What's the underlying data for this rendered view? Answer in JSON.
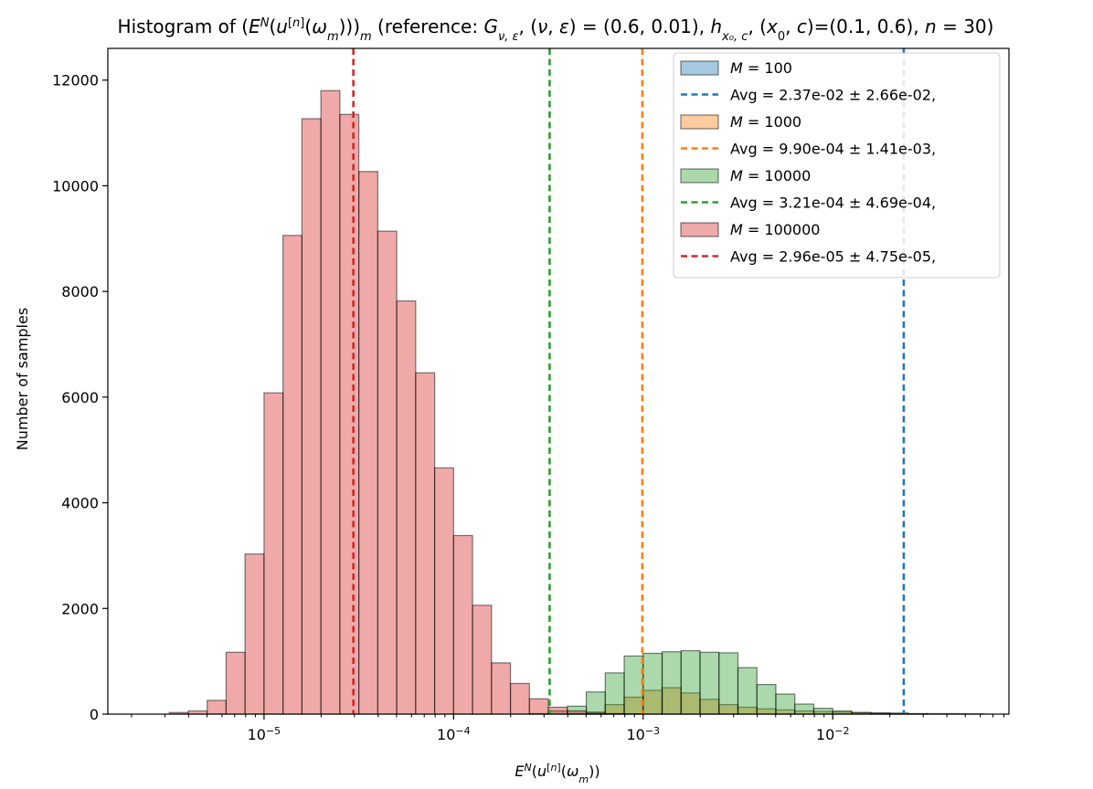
{
  "chart_data": {
    "type": "histogram",
    "title": "Histogram of (E^N(u^[n](ω_m)))_m (reference: G_{ν,ε}, (ν, ε) = (0.6, 0.01), h_{x0,c}, (x0, c)=(0.1, 0.6), n = 30)",
    "xlabel": "E^N(u^[n](ω_m))",
    "ylabel": "Number of samples",
    "xscale": "log",
    "xlim": [
      1.5e-06,
      0.085
    ],
    "ylim": [
      0,
      12600
    ],
    "yticks": [
      0,
      2000,
      4000,
      6000,
      8000,
      10000,
      12000
    ],
    "xticks": [
      {
        "value": 1e-05,
        "base": "10",
        "exp": "−5"
      },
      {
        "value": 0.0001,
        "base": "10",
        "exp": "−4"
      },
      {
        "value": 0.001,
        "base": "10",
        "exp": "−3"
      },
      {
        "value": 0.01,
        "base": "10",
        "exp": "−2"
      }
    ],
    "bin_edges_log10": [
      -5.7,
      -5.6,
      -5.5,
      -5.4,
      -5.3,
      -5.2,
      -5.1,
      -5.0,
      -4.9,
      -4.8,
      -4.7,
      -4.6,
      -4.5,
      -4.4,
      -4.3,
      -4.2,
      -4.1,
      -4.0,
      -3.9,
      -3.8,
      -3.7,
      -3.6,
      -3.5,
      -3.4,
      -3.3,
      -3.2,
      -3.1,
      -3.0,
      -2.9,
      -2.8,
      -2.7,
      -2.6,
      -2.5,
      -2.4,
      -2.3,
      -2.2,
      -2.1,
      -2.0,
      -1.9,
      -1.8,
      -1.7,
      -1.6,
      -1.5,
      -1.4,
      -1.3,
      -1.2
    ],
    "series": [
      {
        "name": "M = 100",
        "M": "100",
        "color": "#1f77b4",
        "avg_label": "Avg = 2.37e-02 ± 2.66e-02,",
        "avg": 0.0237,
        "values": [
          0,
          0,
          0,
          0,
          0,
          0,
          0,
          0,
          0,
          0,
          0,
          0,
          0,
          0,
          0,
          0,
          0,
          0,
          0,
          0,
          0,
          0,
          0,
          0,
          0,
          0,
          0,
          0,
          0,
          0,
          0,
          0,
          0,
          0,
          0,
          0,
          0,
          0,
          0,
          0,
          0,
          0,
          0,
          0,
          0
        ]
      },
      {
        "name": "M = 1000",
        "M": "1000",
        "color": "#ff7f0e",
        "avg_label": "Avg = 9.90e-04 ± 1.41e-03,",
        "avg": 0.00099,
        "values": [
          0,
          0,
          0,
          0,
          0,
          0,
          0,
          0,
          0,
          0,
          0,
          0,
          0,
          0,
          0,
          0,
          0,
          0,
          0,
          0,
          0,
          0,
          0,
          10,
          40,
          180,
          320,
          450,
          500,
          400,
          280,
          180,
          130,
          100,
          80,
          60,
          50,
          40,
          30,
          20,
          20,
          10,
          10,
          10,
          5
        ]
      },
      {
        "name": "M = 10000",
        "M": "10000",
        "color": "#2ca02c",
        "avg_label": "Avg = 3.21e-04 ± 4.69e-04,",
        "avg": 0.000321,
        "values": [
          0,
          0,
          0,
          0,
          0,
          0,
          0,
          0,
          0,
          0,
          0,
          0,
          0,
          0,
          0,
          0,
          0,
          0,
          0,
          0,
          0,
          10,
          60,
          150,
          420,
          780,
          1100,
          1150,
          1180,
          1200,
          1170,
          1160,
          880,
          560,
          380,
          190,
          110,
          60,
          30,
          20,
          10,
          5,
          0,
          0,
          0
        ]
      },
      {
        "name": "M = 100000",
        "M": "100000",
        "color": "#d62728",
        "avg_label": "Avg = 2.96e-05 ± 4.75e-05,",
        "avg": 2.96e-05,
        "values": [
          0,
          0,
          30,
          60,
          260,
          1170,
          3030,
          6080,
          9060,
          11270,
          11800,
          11350,
          10270,
          9140,
          7820,
          6460,
          4660,
          3380,
          2060,
          970,
          580,
          290,
          130,
          60,
          20,
          10,
          5,
          0,
          0,
          0,
          0,
          0,
          0,
          0,
          0,
          0,
          0,
          0,
          0,
          0,
          0,
          0,
          0,
          0,
          0
        ]
      }
    ],
    "legend_location": "top-right"
  }
}
